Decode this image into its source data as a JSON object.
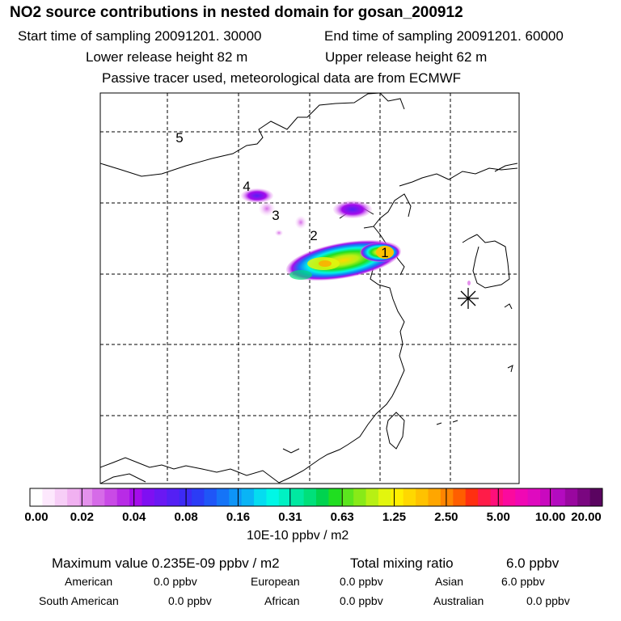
{
  "header": {
    "title": "NO2 source contributions in nested domain for gosan_200912",
    "start_time": "Start time of sampling 20091201. 30000",
    "end_time": "End time of sampling 20091201. 60000",
    "lower_release": "Lower release height   82 m",
    "upper_release": "Upper release height   62 m",
    "note": "Passive tracer used, meteorological data are from ECMWF"
  },
  "map": {
    "source_labels": [
      "1",
      "2",
      "3",
      "4",
      "5"
    ],
    "receptor": "gosan (star marker)"
  },
  "colorbar": {
    "ticks": [
      "0.00",
      "0.02",
      "0.04",
      "0.08",
      "0.16",
      "0.31",
      "0.63",
      "1.25",
      "2.50",
      "5.00",
      "10.00",
      "20.00"
    ],
    "unit": "10E-10 ppbv / m2",
    "colors": [
      "#ffffff",
      "#fde8fd",
      "#f7cef7",
      "#f1b1f1",
      "#e491ec",
      "#d66be8",
      "#c94ae6",
      "#b82be6",
      "#a50ceb",
      "#7f0ff2",
      "#6a18f3",
      "#5420f4",
      "#3d2af5",
      "#2b3cf6",
      "#1f56f7",
      "#1574f7",
      "#0e95f7",
      "#0ab4f5",
      "#05dcf0",
      "#00f7e6",
      "#00f1c3",
      "#00e9a1",
      "#00e07a",
      "#00d34f",
      "#20de20",
      "#5be61e",
      "#88ea18",
      "#b7f014",
      "#e2f60e",
      "#ffef00",
      "#ffd800",
      "#ffc200",
      "#ffa600",
      "#ff8500",
      "#ff5e00",
      "#ff2f10",
      "#ff1c48",
      "#ff0f7a",
      "#fb0a9e",
      "#f008b4",
      "#df0abf",
      "#c909bf",
      "#b30bbf",
      "#99079f",
      "#7a0680",
      "#5a0460"
    ]
  },
  "summary": {
    "max_value": "Maximum value  0.235E-09 ppbv / m2",
    "total_label": "Total mixing ratio",
    "total_value": "6.0 ppbv",
    "regions": [
      {
        "name": "American",
        "value": "0.0 ppbv"
      },
      {
        "name": "European",
        "value": "0.0 ppbv"
      },
      {
        "name": "Asian",
        "value": "6.0 ppbv"
      },
      {
        "name": "South American",
        "value": "0.0 ppbv"
      },
      {
        "name": "African",
        "value": "0.0 ppbv"
      },
      {
        "name": "Australian",
        "value": "0.0 ppbv"
      }
    ]
  }
}
